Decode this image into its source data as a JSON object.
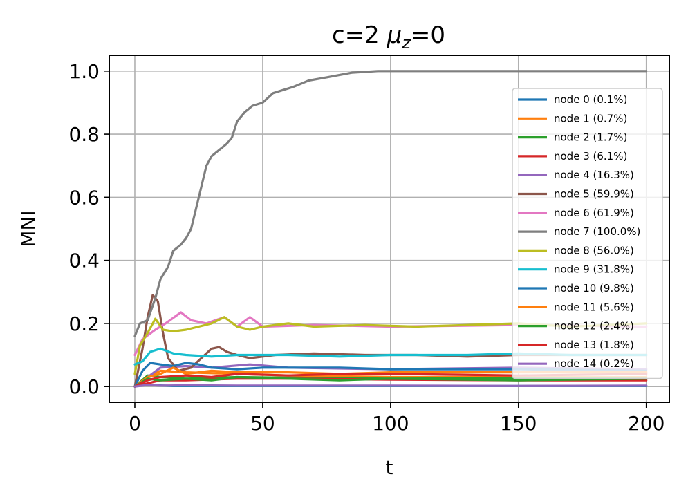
{
  "chart_data": {
    "type": "line",
    "title": "c=2 μz=0",
    "title_main": "c=2 ",
    "title_mu": "μ",
    "title_sub": "z",
    "title_tail": "=0",
    "xlabel": "t",
    "ylabel": "MNI",
    "xlim": [
      -10,
      209
    ],
    "ylim": [
      -0.05,
      1.05
    ],
    "xticks": [
      0,
      50,
      100,
      150,
      200
    ],
    "xtick_labels": [
      "0",
      "50",
      "100",
      "150",
      "200"
    ],
    "yticks": [
      0.0,
      0.2,
      0.4,
      0.6,
      0.8,
      1.0
    ],
    "ytick_labels": [
      "0.0",
      "0.2",
      "0.4",
      "0.6",
      "0.8",
      "1.0"
    ],
    "grid": true,
    "legend_position": "right",
    "series": [
      {
        "name": "node 0 (0.1%)",
        "color": "#1f77b4",
        "x": [
          0,
          3,
          8,
          15,
          200
        ],
        "y": [
          0.0,
          0.008,
          0.004,
          0.002,
          0.002
        ]
      },
      {
        "name": "node 1 (0.7%)",
        "color": "#ff7f0e",
        "x": [
          0,
          5,
          10,
          20,
          40,
          60,
          100,
          150,
          200
        ],
        "y": [
          0.0,
          0.03,
          0.05,
          0.045,
          0.04,
          0.035,
          0.03,
          0.03,
          0.03
        ]
      },
      {
        "name": "node 2 (1.7%)",
        "color": "#2ca02c",
        "x": [
          0,
          5,
          10,
          20,
          40,
          60,
          100,
          150,
          200
        ],
        "y": [
          0.0,
          0.035,
          0.03,
          0.025,
          0.03,
          0.028,
          0.025,
          0.027,
          0.025
        ]
      },
      {
        "name": "node 3 (6.1%)",
        "color": "#d62728",
        "x": [
          0,
          5,
          10,
          20,
          40,
          60,
          100,
          150,
          200
        ],
        "y": [
          0.0,
          0.01,
          0.02,
          0.02,
          0.025,
          0.025,
          0.022,
          0.02,
          0.02
        ]
      },
      {
        "name": "node 4 (16.3%)",
        "color": "#9467bd",
        "x": [
          0,
          5,
          10,
          20,
          30,
          45,
          60,
          100,
          150,
          200
        ],
        "y": [
          0.0,
          0.03,
          0.06,
          0.065,
          0.06,
          0.07,
          0.06,
          0.055,
          0.06,
          0.055
        ]
      },
      {
        "name": "node 5 (59.9%)",
        "color": "#8c564b",
        "x": [
          0,
          3,
          5,
          7,
          9,
          11,
          13,
          17,
          22,
          26,
          30,
          33,
          36,
          40,
          45,
          55,
          70,
          90,
          110,
          130,
          150,
          200
        ],
        "y": [
          0.0,
          0.12,
          0.22,
          0.29,
          0.27,
          0.17,
          0.09,
          0.05,
          0.06,
          0.09,
          0.12,
          0.125,
          0.11,
          0.1,
          0.09,
          0.1,
          0.105,
          0.1,
          0.1,
          0.095,
          0.1,
          0.1
        ]
      },
      {
        "name": "node 6 (61.9%)",
        "color": "#e377c2",
        "x": [
          0,
          3,
          8,
          12,
          18,
          22,
          28,
          35,
          40,
          45,
          50,
          70,
          100,
          150,
          200
        ],
        "y": [
          0.1,
          0.15,
          0.18,
          0.2,
          0.235,
          0.21,
          0.2,
          0.22,
          0.19,
          0.22,
          0.19,
          0.195,
          0.19,
          0.195,
          0.19
        ]
      },
      {
        "name": "node 7 (100.0%)",
        "color": "#7f7f7f",
        "x": [
          0,
          2,
          5,
          8,
          10,
          13,
          15,
          18,
          20,
          22,
          25,
          28,
          30,
          33,
          36,
          38,
          40,
          43,
          46,
          50,
          54,
          58,
          62,
          68,
          75,
          85,
          95,
          120,
          150,
          200
        ],
        "y": [
          0.16,
          0.2,
          0.21,
          0.28,
          0.34,
          0.38,
          0.43,
          0.45,
          0.47,
          0.5,
          0.6,
          0.7,
          0.73,
          0.75,
          0.77,
          0.79,
          0.84,
          0.87,
          0.89,
          0.9,
          0.93,
          0.94,
          0.95,
          0.97,
          0.98,
          0.995,
          1.0,
          1.0,
          1.0,
          1.0
        ]
      },
      {
        "name": "node 8 (56.0%)",
        "color": "#bcbd22",
        "x": [
          0,
          2,
          5,
          8,
          11,
          15,
          20,
          25,
          30,
          35,
          40,
          45,
          50,
          60,
          70,
          90,
          110,
          130,
          150,
          170,
          200
        ],
        "y": [
          0.04,
          0.13,
          0.17,
          0.215,
          0.18,
          0.175,
          0.18,
          0.19,
          0.2,
          0.22,
          0.19,
          0.18,
          0.19,
          0.2,
          0.19,
          0.195,
          0.19,
          0.195,
          0.2,
          0.19,
          0.2
        ]
      },
      {
        "name": "node 9 (31.8%)",
        "color": "#17becf",
        "x": [
          0,
          3,
          6,
          10,
          15,
          20,
          30,
          40,
          50,
          60,
          80,
          100,
          130,
          150,
          170,
          200
        ],
        "y": [
          0.07,
          0.08,
          0.11,
          0.12,
          0.105,
          0.1,
          0.095,
          0.1,
          0.1,
          0.1,
          0.095,
          0.1,
          0.1,
          0.105,
          0.1,
          0.1
        ]
      },
      {
        "name": "node 10 (9.8%)",
        "color": "#1f77b4",
        "x": [
          0,
          3,
          6,
          10,
          15,
          20,
          25,
          30,
          40,
          50,
          60,
          80,
          100,
          130,
          150,
          200
        ],
        "y": [
          0.0,
          0.05,
          0.075,
          0.07,
          0.065,
          0.075,
          0.07,
          0.06,
          0.055,
          0.06,
          0.06,
          0.06,
          0.055,
          0.055,
          0.055,
          0.05
        ]
      },
      {
        "name": "node 11 (5.6%)",
        "color": "#ff7f0e",
        "x": [
          0,
          5,
          10,
          15,
          20,
          30,
          40,
          60,
          80,
          100,
          150,
          200
        ],
        "y": [
          0.0,
          0.03,
          0.04,
          0.06,
          0.04,
          0.05,
          0.045,
          0.045,
          0.04,
          0.045,
          0.045,
          0.045
        ]
      },
      {
        "name": "node 12 (2.4%)",
        "color": "#2ca02c",
        "x": [
          0,
          5,
          10,
          20,
          30,
          40,
          60,
          80,
          100,
          150,
          200
        ],
        "y": [
          0.0,
          0.025,
          0.02,
          0.025,
          0.02,
          0.03,
          0.025,
          0.02,
          0.025,
          0.02,
          0.025
        ]
      },
      {
        "name": "node 13 (1.8%)",
        "color": "#d62728",
        "x": [
          0,
          5,
          10,
          20,
          30,
          40,
          60,
          80,
          100,
          150,
          200
        ],
        "y": [
          0.0,
          0.02,
          0.03,
          0.035,
          0.03,
          0.04,
          0.035,
          0.04,
          0.04,
          0.035,
          0.04
        ]
      },
      {
        "name": "node 14 (0.2%)",
        "color": "#9467bd",
        "x": [
          0,
          5,
          10,
          20,
          40,
          60,
          100,
          150,
          200
        ],
        "y": [
          0.0,
          0.005,
          0.003,
          0.004,
          0.003,
          0.003,
          0.003,
          0.002,
          0.003
        ]
      }
    ]
  }
}
